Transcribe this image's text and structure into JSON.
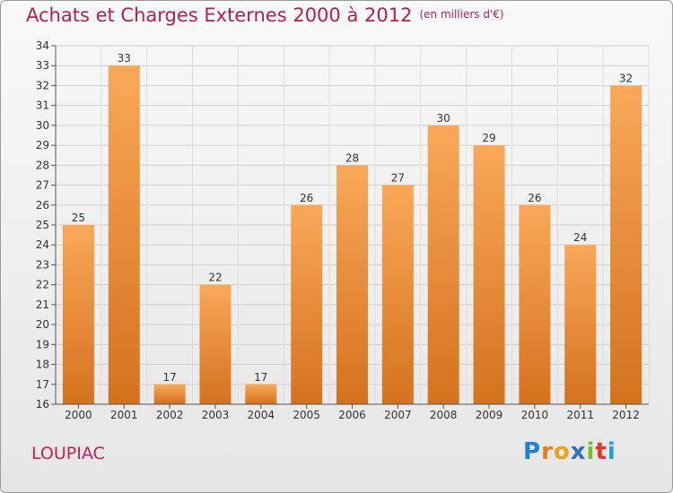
{
  "header": {
    "title": "Achats et Charges Externes 2000 à 2012",
    "unit": "(en milliers d'€)"
  },
  "footer": {
    "commune": "LOUPIAC",
    "logo": "Proxiti"
  },
  "colors": {
    "title": "#b51f4a",
    "bar_light": "#f9a85a",
    "bar_dark": "#d4721e"
  },
  "chart_data": {
    "type": "bar",
    "title": "Achats et Charges Externes 2000 à 2012",
    "subtitle": "(en milliers d'€)",
    "categories": [
      "2000",
      "2001",
      "2002",
      "2003",
      "2004",
      "2005",
      "2006",
      "2007",
      "2008",
      "2009",
      "2010",
      "2011",
      "2012"
    ],
    "values": [
      25,
      33,
      17,
      22,
      17,
      26,
      28,
      27,
      30,
      29,
      26,
      24,
      32
    ],
    "ylim": [
      16,
      34
    ],
    "yticks": [
      16,
      17,
      18,
      19,
      20,
      21,
      22,
      23,
      24,
      25,
      26,
      27,
      28,
      29,
      30,
      31,
      32,
      33,
      34
    ],
    "grid": true
  }
}
